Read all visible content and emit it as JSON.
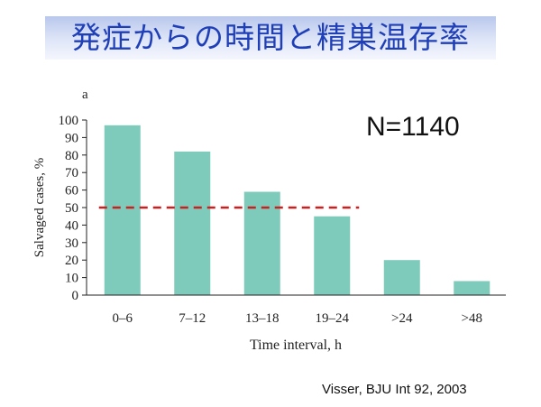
{
  "slide": {
    "title": "発症からの時間と精巣温存率",
    "annotation": "N=1140",
    "citation": "Visser, BJU Int 92, 2003"
  },
  "chart_data": {
    "type": "bar",
    "panel_label": "a",
    "categories": [
      "0–6",
      "7–12",
      "13–18",
      "19–24",
      ">24",
      ">48"
    ],
    "values": [
      97,
      82,
      59,
      45,
      20,
      8
    ],
    "xlabel": "Time interval, h",
    "ylabel": "Salvaged cases, %",
    "ylim": [
      0,
      100
    ],
    "yticks": [
      0,
      10,
      20,
      30,
      40,
      50,
      60,
      70,
      80,
      90,
      100
    ],
    "reference_line": {
      "value": 50,
      "from_category": 0,
      "to_category": 3,
      "style": "dashed"
    },
    "grid": false,
    "bar_color": "#7ecbbb",
    "reference_color": "#cc1f1f"
  }
}
